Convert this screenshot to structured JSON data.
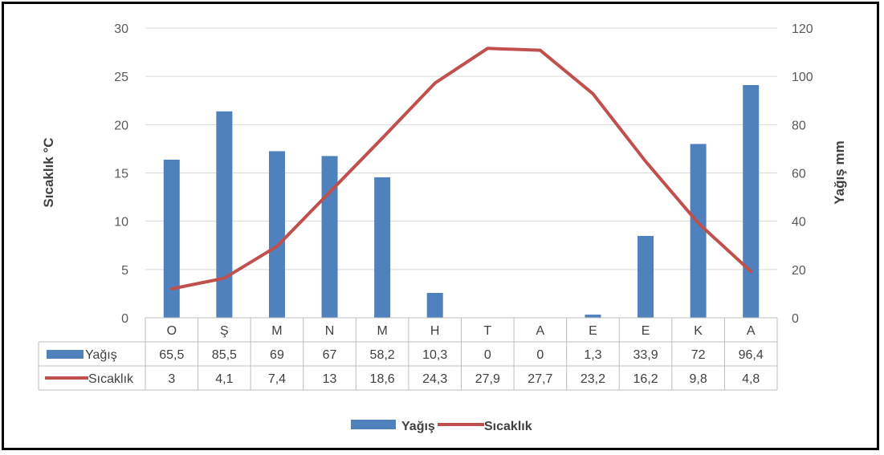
{
  "chart_data": {
    "type": "bar+line",
    "categories": [
      "O",
      "Ş",
      "M",
      "N",
      "M",
      "H",
      "T",
      "A",
      "E",
      "E",
      "K",
      "A"
    ],
    "series": [
      {
        "name": "Yağış",
        "type": "bar",
        "axis": "right",
        "color": "#4f81bd",
        "values": [
          65.5,
          85.5,
          69,
          67,
          58.2,
          10.3,
          0,
          0,
          1.3,
          33.9,
          72,
          96.4
        ],
        "labels": [
          "65,5",
          "85,5",
          "69",
          "67",
          "58,2",
          "10,3",
          "0",
          "0",
          "1,3",
          "33,9",
          "72",
          "96,4"
        ]
      },
      {
        "name": "Sıcaklık",
        "type": "line",
        "axis": "left",
        "color": "#c0504d",
        "values": [
          3,
          4.1,
          7.4,
          13,
          18.6,
          24.3,
          27.9,
          27.7,
          23.2,
          16.2,
          9.8,
          4.8
        ],
        "labels": [
          "3",
          "4,1",
          "7,4",
          "13",
          "18,6",
          "24,3",
          "27,9",
          "27,7",
          "23,2",
          "16,2",
          "9,8",
          "4,8"
        ]
      }
    ],
    "y_left": {
      "label": "Sıcaklık °C",
      "range": [
        0,
        30
      ],
      "ticks": [
        0,
        5,
        10,
        15,
        20,
        25,
        30
      ]
    },
    "y_right": {
      "label": "Yağış mm",
      "range": [
        0,
        120
      ],
      "ticks": [
        0,
        20,
        40,
        60,
        80,
        100,
        120
      ]
    },
    "grid": true,
    "legend": "bottom",
    "data_table": true
  }
}
